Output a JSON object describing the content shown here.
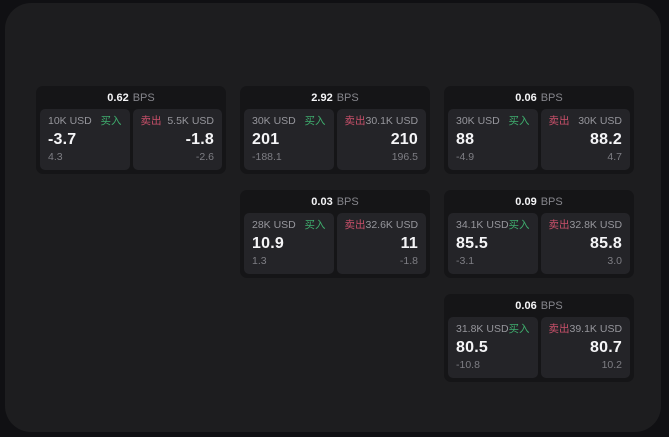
{
  "labels": {
    "bps_unit": "BPS",
    "buy": "买入",
    "sell": "卖出"
  },
  "colors": {
    "background": "#101013",
    "panel": "#1d1d1f",
    "card": "#151517",
    "quote_box": "#242428",
    "buy_green": "#3fae6e",
    "sell_red": "#c9506a"
  },
  "cards": [
    {
      "bps": "0.62",
      "grid": {
        "row": 1,
        "col": 1
      },
      "buy": {
        "amount": "10K USD",
        "price": "-3.7",
        "delta": "4.3"
      },
      "sell": {
        "amount": "5.5K USD",
        "price": "-1.8",
        "delta": "-2.6"
      }
    },
    {
      "bps": "2.92",
      "grid": {
        "row": 1,
        "col": 2
      },
      "buy": {
        "amount": "30K USD",
        "price": "201",
        "delta": "-188.1"
      },
      "sell": {
        "amount": "30.1K USD",
        "price": "210",
        "delta": "196.5"
      }
    },
    {
      "bps": "0.06",
      "grid": {
        "row": 1,
        "col": 3
      },
      "buy": {
        "amount": "30K USD",
        "price": "88",
        "delta": "-4.9"
      },
      "sell": {
        "amount": "30K USD",
        "price": "88.2",
        "delta": "4.7"
      }
    },
    {
      "bps": "0.03",
      "grid": {
        "row": 2,
        "col": 2
      },
      "buy": {
        "amount": "28K USD",
        "price": "10.9",
        "delta": "1.3"
      },
      "sell": {
        "amount": "32.6K USD",
        "price": "11",
        "delta": "-1.8"
      }
    },
    {
      "bps": "0.09",
      "grid": {
        "row": 2,
        "col": 3
      },
      "buy": {
        "amount": "34.1K USD",
        "price": "85.5",
        "delta": "-3.1"
      },
      "sell": {
        "amount": "32.8K USD",
        "price": "85.8",
        "delta": "3.0"
      }
    },
    {
      "bps": "0.06",
      "grid": {
        "row": 3,
        "col": 3
      },
      "buy": {
        "amount": "31.8K USD",
        "price": "80.5",
        "delta": "-10.8"
      },
      "sell": {
        "amount": "39.1K USD",
        "price": "80.7",
        "delta": "10.2"
      }
    }
  ]
}
